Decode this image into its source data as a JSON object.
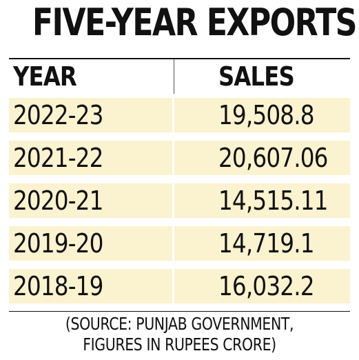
{
  "title": "FIVE-YEAR EXPORTS",
  "chart_data": {
    "type": "table",
    "title": "FIVE-YEAR EXPORTS",
    "columns": [
      "YEAR",
      "SALES"
    ],
    "rows": [
      [
        "2022-23",
        "19,508.8"
      ],
      [
        "2021-22",
        "20,607.06"
      ],
      [
        "2020-21",
        "14,515.11"
      ],
      [
        "2019-20",
        "14,719.1"
      ],
      [
        "2018-19",
        "16,032.2"
      ]
    ],
    "values": [
      19508.8,
      20607.06,
      14515.11,
      14719.1,
      16032.2
    ]
  },
  "source_lines": [
    "(SOURCE: PUNJAB GOVERNMENT,",
    "FIGURES IN RUPEES CRORE)"
  ],
  "colors": {
    "row_fill": "#fbf2cf",
    "text": "#111111",
    "divider": "#555555"
  }
}
